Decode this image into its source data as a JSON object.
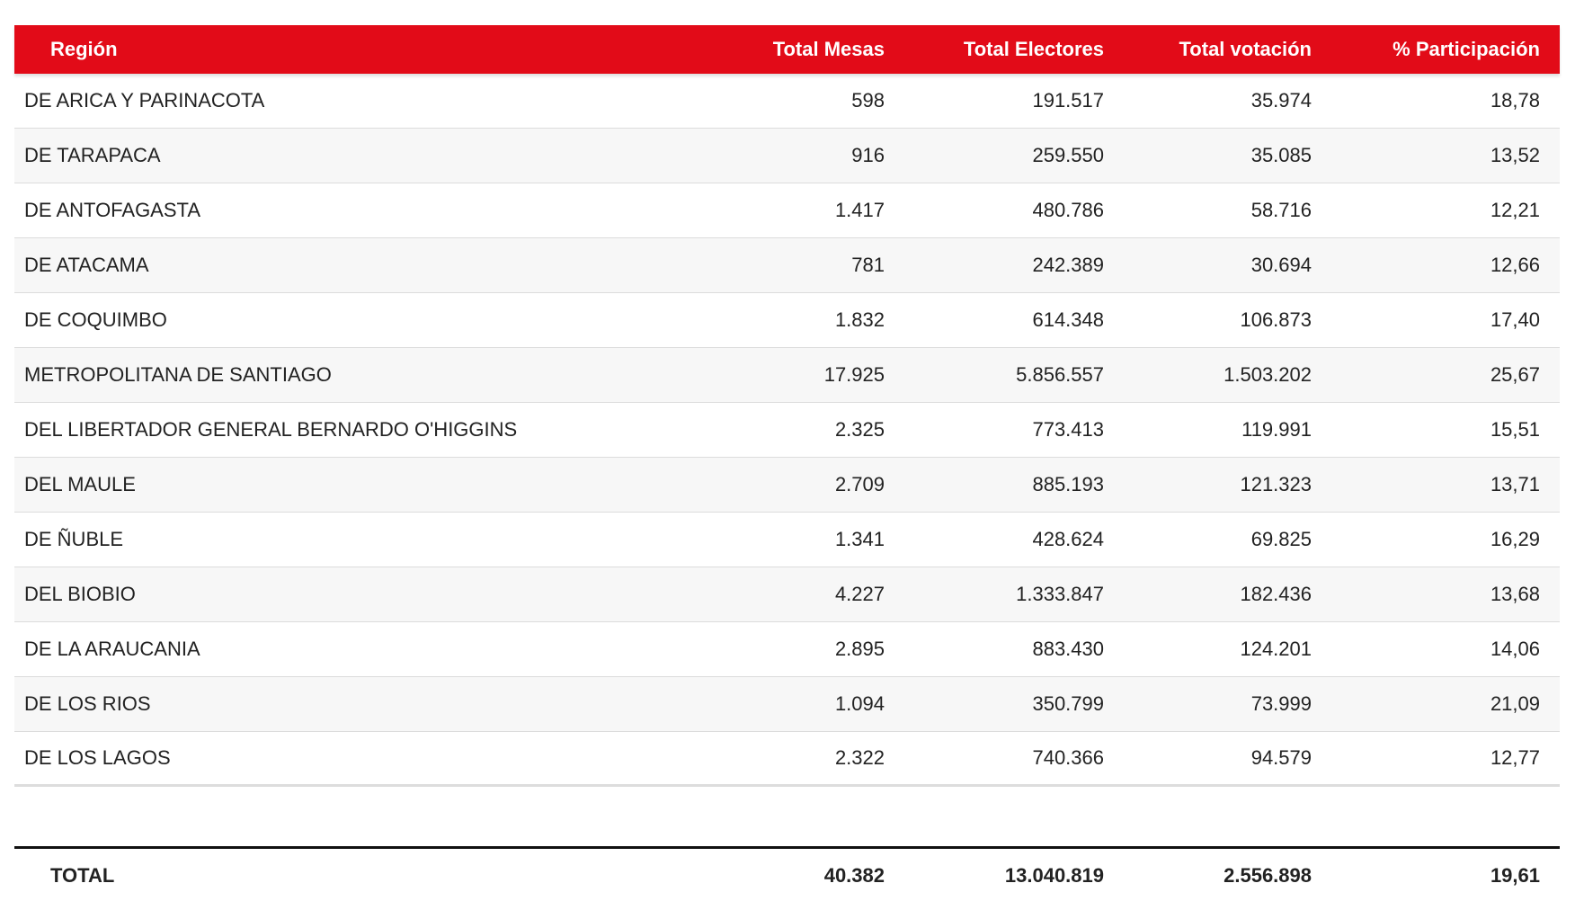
{
  "table": {
    "header": [
      "Región",
      "Total Mesas",
      "Total Electores",
      "Total votación",
      "% Participación"
    ],
    "rows": [
      [
        "DE ARICA Y PARINACOTA",
        "598",
        "191.517",
        "35.974",
        "18,78"
      ],
      [
        "DE TARAPACA",
        "916",
        "259.550",
        "35.085",
        "13,52"
      ],
      [
        "DE ANTOFAGASTA",
        "1.417",
        "480.786",
        "58.716",
        "12,21"
      ],
      [
        "DE ATACAMA",
        "781",
        "242.389",
        "30.694",
        "12,66"
      ],
      [
        "DE COQUIMBO",
        "1.832",
        "614.348",
        "106.873",
        "17,40"
      ],
      [
        "METROPOLITANA DE SANTIAGO",
        "17.925",
        "5.856.557",
        "1.503.202",
        "25,67"
      ],
      [
        "DEL LIBERTADOR GENERAL BERNARDO O'HIGGINS",
        "2.325",
        "773.413",
        "119.991",
        "15,51"
      ],
      [
        "DEL MAULE",
        "2.709",
        "885.193",
        "121.323",
        "13,71"
      ],
      [
        "DE ÑUBLE",
        "1.341",
        "428.624",
        "69.825",
        "16,29"
      ],
      [
        "DEL BIOBIO",
        "4.227",
        "1.333.847",
        "182.436",
        "13,68"
      ],
      [
        "DE LA ARAUCANIA",
        "2.895",
        "883.430",
        "124.201",
        "14,06"
      ],
      [
        "DE LOS RIOS",
        "1.094",
        "350.799",
        "73.999",
        "21,09"
      ],
      [
        "DE LOS LAGOS",
        "2.322",
        "740.366",
        "94.579",
        "12,77"
      ]
    ],
    "total": [
      "TOTAL",
      "40.382",
      "13.040.819",
      "2.556.898",
      "19,61"
    ]
  }
}
